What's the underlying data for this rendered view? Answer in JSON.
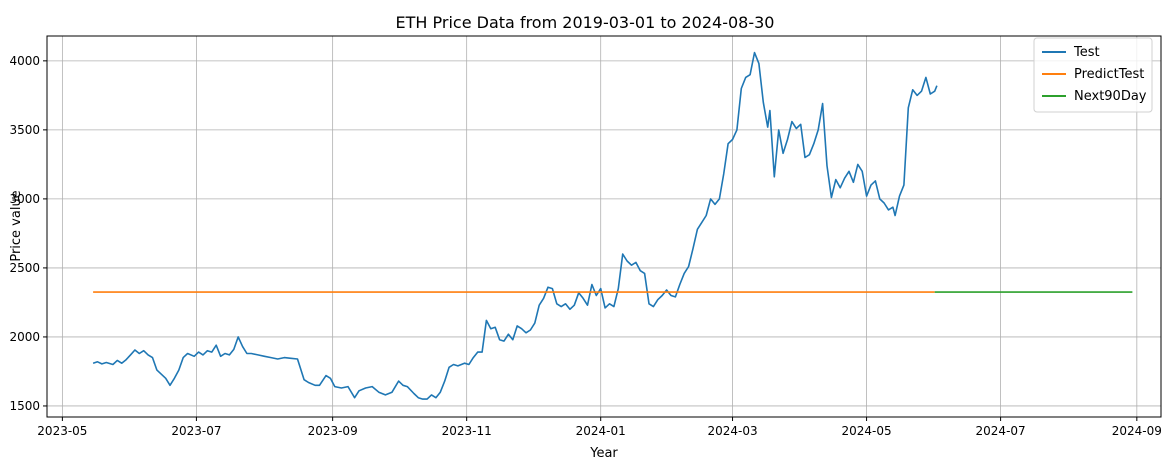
{
  "chart_data": {
    "type": "line",
    "title": "ETH Price Data from 2019-03-01 to 2024-08-30",
    "xlabel": "Year",
    "ylabel": "Price value",
    "xlim": [
      "2023-04-24",
      "2024-09-12"
    ],
    "ylim": [
      1420,
      4180
    ],
    "grid": true,
    "legend_position": "top-right",
    "x_ticks": [
      {
        "date": "2023-05-01",
        "label": "2023-05"
      },
      {
        "date": "2023-07-01",
        "label": "2023-07"
      },
      {
        "date": "2023-09-01",
        "label": "2023-09"
      },
      {
        "date": "2023-11-01",
        "label": "2023-11"
      },
      {
        "date": "2024-01-01",
        "label": "2024-01"
      },
      {
        "date": "2024-03-01",
        "label": "2024-03"
      },
      {
        "date": "2024-05-01",
        "label": "2024-05"
      },
      {
        "date": "2024-07-01",
        "label": "2024-07"
      },
      {
        "date": "2024-09-01",
        "label": "2024-09"
      }
    ],
    "y_ticks": [
      1500,
      2000,
      2500,
      3000,
      3500,
      4000
    ],
    "series": [
      {
        "name": "Test",
        "color": "#1f77b4",
        "points": [
          [
            "2023-05-15",
            1810
          ],
          [
            "2023-05-17",
            1820
          ],
          [
            "2023-05-19",
            1805
          ],
          [
            "2023-05-21",
            1815
          ],
          [
            "2023-05-24",
            1800
          ],
          [
            "2023-05-26",
            1830
          ],
          [
            "2023-05-28",
            1810
          ],
          [
            "2023-05-30",
            1835
          ],
          [
            "2023-06-01",
            1870
          ],
          [
            "2023-06-03",
            1905
          ],
          [
            "2023-06-05",
            1880
          ],
          [
            "2023-06-07",
            1900
          ],
          [
            "2023-06-09",
            1870
          ],
          [
            "2023-06-11",
            1850
          ],
          [
            "2023-06-13",
            1760
          ],
          [
            "2023-06-15",
            1730
          ],
          [
            "2023-06-17",
            1700
          ],
          [
            "2023-06-19",
            1650
          ],
          [
            "2023-06-21",
            1700
          ],
          [
            "2023-06-23",
            1760
          ],
          [
            "2023-06-25",
            1850
          ],
          [
            "2023-06-27",
            1880
          ],
          [
            "2023-06-30",
            1860
          ],
          [
            "2023-07-02",
            1890
          ],
          [
            "2023-07-04",
            1870
          ],
          [
            "2023-07-06",
            1900
          ],
          [
            "2023-07-08",
            1890
          ],
          [
            "2023-07-10",
            1940
          ],
          [
            "2023-07-12",
            1860
          ],
          [
            "2023-07-14",
            1880
          ],
          [
            "2023-07-16",
            1870
          ],
          [
            "2023-07-18",
            1910
          ],
          [
            "2023-07-20",
            2000
          ],
          [
            "2023-07-22",
            1930
          ],
          [
            "2023-07-24",
            1880
          ],
          [
            "2023-07-26",
            1880
          ],
          [
            "2023-07-29",
            1870
          ],
          [
            "2023-08-01",
            1860
          ],
          [
            "2023-08-04",
            1850
          ],
          [
            "2023-08-07",
            1840
          ],
          [
            "2023-08-10",
            1850
          ],
          [
            "2023-08-13",
            1845
          ],
          [
            "2023-08-16",
            1840
          ],
          [
            "2023-08-19",
            1690
          ],
          [
            "2023-08-21",
            1670
          ],
          [
            "2023-08-24",
            1650
          ],
          [
            "2023-08-26",
            1650
          ],
          [
            "2023-08-29",
            1720
          ],
          [
            "2023-08-31",
            1700
          ],
          [
            "2023-09-02",
            1640
          ],
          [
            "2023-09-05",
            1630
          ],
          [
            "2023-09-08",
            1640
          ],
          [
            "2023-09-11",
            1560
          ],
          [
            "2023-09-13",
            1610
          ],
          [
            "2023-09-16",
            1630
          ],
          [
            "2023-09-19",
            1640
          ],
          [
            "2023-09-22",
            1600
          ],
          [
            "2023-09-25",
            1580
          ],
          [
            "2023-09-28",
            1600
          ],
          [
            "2023-10-01",
            1680
          ],
          [
            "2023-10-03",
            1650
          ],
          [
            "2023-10-05",
            1640
          ],
          [
            "2023-10-08",
            1590
          ],
          [
            "2023-10-10",
            1560
          ],
          [
            "2023-10-12",
            1550
          ],
          [
            "2023-10-14",
            1550
          ],
          [
            "2023-10-16",
            1580
          ],
          [
            "2023-10-18",
            1560
          ],
          [
            "2023-10-20",
            1600
          ],
          [
            "2023-10-22",
            1680
          ],
          [
            "2023-10-24",
            1780
          ],
          [
            "2023-10-26",
            1800
          ],
          [
            "2023-10-28",
            1790
          ],
          [
            "2023-10-31",
            1810
          ],
          [
            "2023-11-02",
            1800
          ],
          [
            "2023-11-04",
            1850
          ],
          [
            "2023-11-06",
            1890
          ],
          [
            "2023-11-08",
            1890
          ],
          [
            "2023-11-10",
            2120
          ],
          [
            "2023-11-12",
            2060
          ],
          [
            "2023-11-14",
            2070
          ],
          [
            "2023-11-16",
            1980
          ],
          [
            "2023-11-18",
            1970
          ],
          [
            "2023-11-20",
            2020
          ],
          [
            "2023-11-22",
            1980
          ],
          [
            "2023-11-24",
            2080
          ],
          [
            "2023-11-26",
            2060
          ],
          [
            "2023-11-28",
            2030
          ],
          [
            "2023-11-30",
            2050
          ],
          [
            "2023-12-02",
            2100
          ],
          [
            "2023-12-04",
            2230
          ],
          [
            "2023-12-06",
            2280
          ],
          [
            "2023-12-08",
            2360
          ],
          [
            "2023-12-10",
            2350
          ],
          [
            "2023-12-12",
            2240
          ],
          [
            "2023-12-14",
            2220
          ],
          [
            "2023-12-16",
            2240
          ],
          [
            "2023-12-18",
            2200
          ],
          [
            "2023-12-20",
            2230
          ],
          [
            "2023-12-22",
            2320
          ],
          [
            "2023-12-24",
            2280
          ],
          [
            "2023-12-26",
            2230
          ],
          [
            "2023-12-28",
            2380
          ],
          [
            "2023-12-30",
            2300
          ],
          [
            "2024-01-01",
            2350
          ],
          [
            "2024-01-03",
            2210
          ],
          [
            "2024-01-05",
            2240
          ],
          [
            "2024-01-07",
            2220
          ],
          [
            "2024-01-09",
            2350
          ],
          [
            "2024-01-11",
            2600
          ],
          [
            "2024-01-13",
            2550
          ],
          [
            "2024-01-15",
            2520
          ],
          [
            "2024-01-17",
            2540
          ],
          [
            "2024-01-19",
            2480
          ],
          [
            "2024-01-21",
            2460
          ],
          [
            "2024-01-23",
            2240
          ],
          [
            "2024-01-25",
            2220
          ],
          [
            "2024-01-27",
            2270
          ],
          [
            "2024-01-29",
            2300
          ],
          [
            "2024-01-31",
            2340
          ],
          [
            "2024-02-02",
            2300
          ],
          [
            "2024-02-04",
            2290
          ],
          [
            "2024-02-06",
            2380
          ],
          [
            "2024-02-08",
            2460
          ],
          [
            "2024-02-10",
            2510
          ],
          [
            "2024-02-12",
            2640
          ],
          [
            "2024-02-14",
            2780
          ],
          [
            "2024-02-16",
            2830
          ],
          [
            "2024-02-18",
            2880
          ],
          [
            "2024-02-20",
            3000
          ],
          [
            "2024-02-22",
            2960
          ],
          [
            "2024-02-24",
            3000
          ],
          [
            "2024-02-26",
            3180
          ],
          [
            "2024-02-28",
            3400
          ],
          [
            "2024-03-01",
            3430
          ],
          [
            "2024-03-03",
            3500
          ],
          [
            "2024-03-05",
            3800
          ],
          [
            "2024-03-07",
            3880
          ],
          [
            "2024-03-09",
            3900
          ],
          [
            "2024-03-11",
            4060
          ],
          [
            "2024-03-13",
            3980
          ],
          [
            "2024-03-15",
            3700
          ],
          [
            "2024-03-17",
            3520
          ],
          [
            "2024-03-18",
            3640
          ],
          [
            "2024-03-20",
            3160
          ],
          [
            "2024-03-22",
            3500
          ],
          [
            "2024-03-24",
            3330
          ],
          [
            "2024-03-26",
            3430
          ],
          [
            "2024-03-28",
            3560
          ],
          [
            "2024-03-30",
            3510
          ],
          [
            "2024-04-01",
            3540
          ],
          [
            "2024-04-03",
            3300
          ],
          [
            "2024-04-05",
            3320
          ],
          [
            "2024-04-07",
            3400
          ],
          [
            "2024-04-09",
            3500
          ],
          [
            "2024-04-11",
            3690
          ],
          [
            "2024-04-13",
            3240
          ],
          [
            "2024-04-15",
            3010
          ],
          [
            "2024-04-17",
            3140
          ],
          [
            "2024-04-19",
            3080
          ],
          [
            "2024-04-21",
            3150
          ],
          [
            "2024-04-23",
            3200
          ],
          [
            "2024-04-25",
            3120
          ],
          [
            "2024-04-27",
            3250
          ],
          [
            "2024-04-29",
            3200
          ],
          [
            "2024-05-01",
            3020
          ],
          [
            "2024-05-03",
            3100
          ],
          [
            "2024-05-05",
            3130
          ],
          [
            "2024-05-07",
            3000
          ],
          [
            "2024-05-09",
            2970
          ],
          [
            "2024-05-11",
            2920
          ],
          [
            "2024-05-13",
            2940
          ],
          [
            "2024-05-14",
            2880
          ],
          [
            "2024-05-16",
            3020
          ],
          [
            "2024-05-18",
            3100
          ],
          [
            "2024-05-20",
            3660
          ],
          [
            "2024-05-22",
            3790
          ],
          [
            "2024-05-24",
            3750
          ],
          [
            "2024-05-26",
            3780
          ],
          [
            "2024-05-28",
            3880
          ],
          [
            "2024-05-30",
            3760
          ],
          [
            "2024-06-01",
            3780
          ],
          [
            "2024-06-02",
            3820
          ]
        ]
      },
      {
        "name": "PredictTest",
        "color": "#ff7f0e",
        "points": [
          [
            "2023-05-15",
            2325
          ],
          [
            "2024-06-01",
            2325
          ]
        ]
      },
      {
        "name": "Next90Day",
        "color": "#2ca02c",
        "points": [
          [
            "2024-06-01",
            2325
          ],
          [
            "2024-08-30",
            2325
          ]
        ]
      }
    ]
  }
}
